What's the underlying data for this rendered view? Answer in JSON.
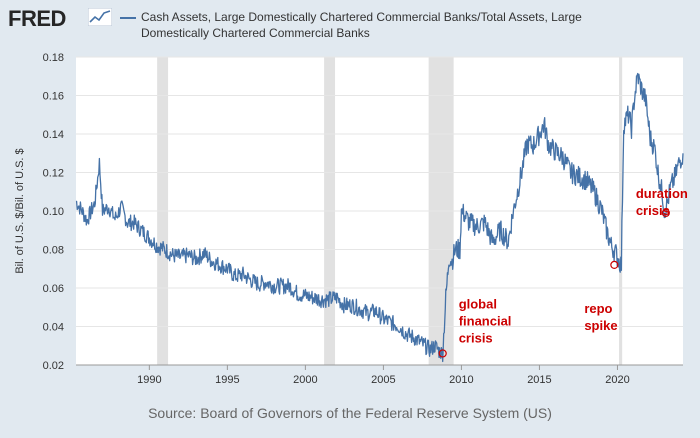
{
  "header": {
    "logo_text": "FRED",
    "logo_icon": "fred-chart-icon",
    "legend_text": "Cash Assets, Large Domestically Chartered Commercial Banks/Total Assets, Large Domestically Chartered Commercial Banks"
  },
  "source": "Source: Board of Governors of the Federal Reserve System (US)",
  "colors": {
    "series": "#4572a7",
    "recession": "#e1e1e1",
    "annotation": "#cc0000",
    "background": "#e1e9f0",
    "plot": "#ffffff"
  },
  "chart_data": {
    "type": "line",
    "ylabel": "Bil. of U.S. $/Bil. of U.S. $",
    "xlabel": "",
    "xlim": [
      1985.3,
      2024.2
    ],
    "ylim": [
      0.02,
      0.18
    ],
    "x_ticks": [
      "1990",
      "1995",
      "2000",
      "2005",
      "2010",
      "2015",
      "2020"
    ],
    "y_ticks": [
      "0.02",
      "0.04",
      "0.06",
      "0.08",
      "0.10",
      "0.12",
      "0.14",
      "0.16",
      "0.18"
    ],
    "grid": "horizontal",
    "recessions": [
      [
        1990.5,
        1991.2
      ],
      [
        2001.2,
        2001.9
      ],
      [
        2007.9,
        2009.5
      ],
      [
        2020.1,
        2020.3
      ]
    ],
    "series": [
      {
        "x": [
          1985.3,
          1985.7,
          1986.0,
          1986.5,
          1986.8,
          1987.0,
          1987.4,
          1987.8,
          1988.2,
          1988.6,
          1989.0,
          1989.5,
          1990.0,
          1990.5,
          1991.0,
          1991.5,
          1992.0,
          1992.5,
          1993.0,
          1993.5,
          1994.0,
          1994.5,
          1995.0,
          1995.5,
          1996.0,
          1996.5,
          1997.0,
          1997.5,
          1998.0,
          1998.5,
          1999.0,
          1999.5,
          2000.0,
          2000.5,
          2001.0,
          2001.5,
          2002.0,
          2002.5,
          2003.0,
          2003.5,
          2004.0,
          2004.5,
          2005.0,
          2005.5,
          2006.0,
          2006.5,
          2007.0,
          2007.5,
          2008.0,
          2008.3,
          2008.6,
          2008.8,
          2008.9,
          2009.0,
          2009.1,
          2009.2,
          2009.4,
          2009.6,
          2009.9,
          2010.0,
          2010.2,
          2010.5,
          2011.0,
          2011.5,
          2012.0,
          2012.5,
          2013.0,
          2013.3,
          2013.6,
          2013.9,
          2014.2,
          2014.6,
          2015.0,
          2015.3,
          2015.6,
          2016.0,
          2016.5,
          2017.0,
          2017.5,
          2018.0,
          2018.5,
          2019.0,
          2019.3,
          2019.6,
          2019.9,
          2020.1,
          2020.25,
          2020.4,
          2020.7,
          2020.9,
          2021.1,
          2021.3,
          2021.6,
          2021.8,
          2022.1,
          2022.4,
          2022.6,
          2022.9,
          2023.0,
          2023.2,
          2023.4,
          2023.7,
          2023.9,
          2024.2
        ],
        "y": [
          0.105,
          0.1,
          0.095,
          0.104,
          0.125,
          0.1,
          0.102,
          0.096,
          0.102,
          0.094,
          0.094,
          0.09,
          0.086,
          0.082,
          0.08,
          0.077,
          0.076,
          0.077,
          0.075,
          0.078,
          0.074,
          0.072,
          0.07,
          0.066,
          0.067,
          0.064,
          0.062,
          0.063,
          0.061,
          0.061,
          0.061,
          0.057,
          0.056,
          0.055,
          0.054,
          0.054,
          0.055,
          0.051,
          0.051,
          0.049,
          0.047,
          0.048,
          0.044,
          0.042,
          0.04,
          0.036,
          0.034,
          0.031,
          0.028,
          0.03,
          0.027,
          0.026,
          0.04,
          0.055,
          0.065,
          0.076,
          0.074,
          0.08,
          0.08,
          0.1,
          0.098,
          0.094,
          0.092,
          0.094,
          0.084,
          0.09,
          0.084,
          0.099,
          0.11,
          0.122,
          0.135,
          0.134,
          0.14,
          0.145,
          0.134,
          0.131,
          0.128,
          0.12,
          0.118,
          0.116,
          0.11,
          0.1,
          0.09,
          0.082,
          0.078,
          0.074,
          0.072,
          0.145,
          0.15,
          0.143,
          0.16,
          0.17,
          0.162,
          0.158,
          0.138,
          0.132,
          0.12,
          0.108,
          0.1,
          0.104,
          0.112,
          0.118,
          0.124,
          0.13
        ]
      }
    ],
    "annotations": [
      {
        "text": [
          "global",
          "financial",
          "crisis"
        ],
        "x": 2008.8,
        "y": 0.026
      },
      {
        "text": [
          "repo",
          "spike"
        ],
        "x": 2019.8,
        "y": 0.072
      },
      {
        "text": [
          "duration",
          "crisis"
        ],
        "x": 2023.1,
        "y": 0.099
      }
    ]
  }
}
